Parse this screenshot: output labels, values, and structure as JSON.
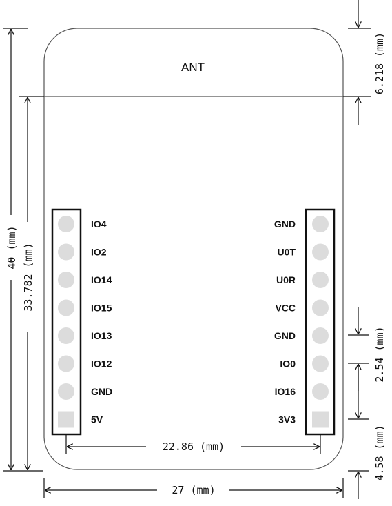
{
  "board": {
    "antenna_label": "ANT",
    "outline_color": "#555555",
    "pad_color": "#dcdcdc"
  },
  "left_header": {
    "pins": [
      "IO4",
      "IO2",
      "IO14",
      "IO15",
      "IO13",
      "IO12",
      "GND",
      "5V"
    ]
  },
  "right_header": {
    "pins": [
      "GND",
      "U0T",
      "U0R",
      "VCC",
      "GND",
      "IO0",
      "IO16",
      "3V3"
    ]
  },
  "dimensions": {
    "total_height": "40 (mm)",
    "body_height": "33.782 (mm)",
    "antenna_height": "6.218 (mm)",
    "pin_pitch": "2.54 (mm)",
    "bottom_offset": "4.58 (mm)",
    "header_spacing": "22.86 (mm)",
    "total_width": "27 (mm)"
  }
}
